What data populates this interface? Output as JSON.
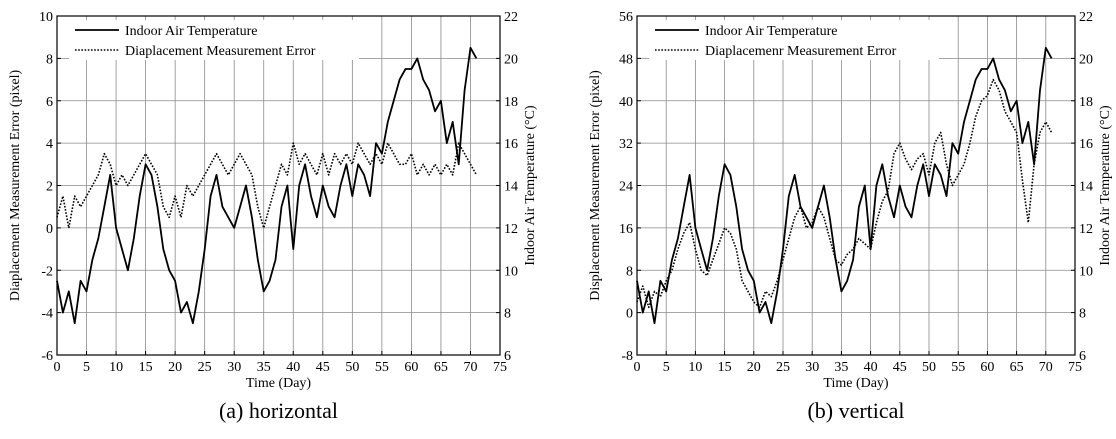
{
  "chart_data": [
    {
      "type": "line",
      "caption": "(a) horizontal",
      "xlabel": "Time (Day)",
      "ylabel": "Diaplacement Measurement Error (pixel)",
      "ylabel2": "Indoor Air Temperature (°C)",
      "xlim": [
        0,
        75
      ],
      "ylim": [
        -6,
        10
      ],
      "y2lim": [
        6,
        22
      ],
      "xticks": [
        0,
        5,
        10,
        15,
        20,
        25,
        30,
        35,
        40,
        45,
        50,
        55,
        60,
        65,
        70,
        75
      ],
      "yticks": [
        -6,
        -4,
        -2,
        0,
        2,
        4,
        6,
        8,
        10
      ],
      "y2ticks": [
        6,
        8,
        10,
        12,
        14,
        16,
        18,
        20,
        22
      ],
      "grid": true,
      "legend": "top-left",
      "series": [
        {
          "name": "Indoor Air Temperature",
          "style": "solid",
          "axis": "right",
          "x": [
            0,
            1,
            2,
            3,
            4,
            5,
            6,
            7,
            8,
            9,
            10,
            11,
            12,
            13,
            14,
            15,
            16,
            17,
            18,
            19,
            20,
            21,
            22,
            23,
            24,
            25,
            26,
            27,
            28,
            29,
            30,
            31,
            32,
            33,
            34,
            35,
            36,
            37,
            38,
            39,
            40,
            41,
            42,
            43,
            44,
            45,
            46,
            47,
            48,
            49,
            50,
            51,
            52,
            53,
            54,
            55,
            56,
            57,
            58,
            59,
            60,
            61,
            62,
            63,
            64,
            65,
            66,
            67,
            68,
            69,
            70,
            71
          ],
          "values": [
            9.5,
            8.0,
            9.0,
            7.5,
            9.5,
            9.0,
            10.5,
            11.5,
            13.0,
            14.5,
            12.0,
            11.0,
            10.0,
            11.5,
            13.5,
            15.0,
            14.5,
            13.0,
            11.0,
            10.0,
            9.5,
            8.0,
            8.5,
            7.5,
            9.0,
            11.0,
            13.5,
            14.5,
            13.0,
            12.5,
            12.0,
            13.0,
            14.0,
            12.5,
            10.5,
            9.0,
            9.5,
            10.5,
            13.0,
            14.0,
            11.0,
            14.0,
            15.0,
            13.5,
            12.5,
            14.0,
            13.0,
            12.5,
            14.0,
            15.0,
            13.5,
            15.0,
            14.5,
            13.5,
            16.0,
            15.5,
            17.0,
            18.0,
            19.0,
            19.5,
            19.5,
            20.0,
            19.0,
            18.5,
            17.5,
            18.0,
            16.0,
            17.0,
            15.0,
            18.5,
            20.5,
            20.0
          ]
        },
        {
          "name": "Diaplacement Measurement Error",
          "style": "dotted",
          "axis": "left",
          "x": [
            0,
            1,
            2,
            3,
            4,
            5,
            6,
            7,
            8,
            9,
            10,
            11,
            12,
            13,
            14,
            15,
            16,
            17,
            18,
            19,
            20,
            21,
            22,
            23,
            24,
            25,
            26,
            27,
            28,
            29,
            30,
            31,
            32,
            33,
            34,
            35,
            36,
            37,
            38,
            39,
            40,
            41,
            42,
            43,
            44,
            45,
            46,
            47,
            48,
            49,
            50,
            51,
            52,
            53,
            54,
            55,
            56,
            57,
            58,
            59,
            60,
            61,
            62,
            63,
            64,
            65,
            66,
            67,
            68,
            69,
            70,
            71
          ],
          "values": [
            0.5,
            1.5,
            0.0,
            1.5,
            1.0,
            1.5,
            2.0,
            2.5,
            3.5,
            3.0,
            2.0,
            2.5,
            2.0,
            2.5,
            3.0,
            3.5,
            3.0,
            2.5,
            1.0,
            0.5,
            1.5,
            0.5,
            2.0,
            1.5,
            2.0,
            2.5,
            3.0,
            3.5,
            3.0,
            2.5,
            3.0,
            3.5,
            3.0,
            2.5,
            1.0,
            0.0,
            1.0,
            2.0,
            3.0,
            2.5,
            4.0,
            3.0,
            3.5,
            3.0,
            2.5,
            3.5,
            2.5,
            3.5,
            3.0,
            3.5,
            3.0,
            4.0,
            3.5,
            3.0,
            3.5,
            3.0,
            4.0,
            3.5,
            3.0,
            3.0,
            3.5,
            2.5,
            3.0,
            2.5,
            3.0,
            2.5,
            3.0,
            2.5,
            4.0,
            3.5,
            3.0,
            2.5
          ]
        }
      ]
    },
    {
      "type": "line",
      "caption": "(b) vertical",
      "xlabel": "Time (Day)",
      "ylabel": "Displacement Measurement Error (pixel)",
      "ylabel2": "Indoor Air Temperature (°C)",
      "xlim": [
        0,
        75
      ],
      "ylim": [
        -8,
        56
      ],
      "y2lim": [
        6,
        22
      ],
      "xticks": [
        0,
        5,
        10,
        15,
        20,
        25,
        30,
        35,
        40,
        45,
        50,
        55,
        60,
        65,
        70,
        75
      ],
      "yticks": [
        -8,
        0,
        8,
        16,
        24,
        32,
        40,
        48,
        56
      ],
      "y2ticks": [
        6,
        8,
        10,
        12,
        14,
        16,
        18,
        20,
        22
      ],
      "grid": true,
      "legend": "top-left",
      "series": [
        {
          "name": "Indoor Air Temperature",
          "style": "solid",
          "axis": "right",
          "x": [
            0,
            1,
            2,
            3,
            4,
            5,
            6,
            7,
            8,
            9,
            10,
            11,
            12,
            13,
            14,
            15,
            16,
            17,
            18,
            19,
            20,
            21,
            22,
            23,
            24,
            25,
            26,
            27,
            28,
            29,
            30,
            31,
            32,
            33,
            34,
            35,
            36,
            37,
            38,
            39,
            40,
            41,
            42,
            43,
            44,
            45,
            46,
            47,
            48,
            49,
            50,
            51,
            52,
            53,
            54,
            55,
            56,
            57,
            58,
            59,
            60,
            61,
            62,
            63,
            64,
            65,
            66,
            67,
            68,
            69,
            70,
            71
          ],
          "values": [
            9.5,
            8.0,
            9.0,
            7.5,
            9.5,
            9.0,
            10.5,
            11.5,
            13.0,
            14.5,
            12.0,
            11.0,
            10.0,
            11.5,
            13.5,
            15.0,
            14.5,
            13.0,
            11.0,
            10.0,
            9.5,
            8.0,
            8.5,
            7.5,
            9.0,
            11.0,
            13.5,
            14.5,
            13.0,
            12.5,
            12.0,
            13.0,
            14.0,
            12.5,
            10.5,
            9.0,
            9.5,
            10.5,
            13.0,
            14.0,
            11.0,
            14.0,
            15.0,
            13.5,
            12.5,
            14.0,
            13.0,
            12.5,
            14.0,
            15.0,
            13.5,
            15.0,
            14.5,
            13.5,
            16.0,
            15.5,
            17.0,
            18.0,
            19.0,
            19.5,
            19.5,
            20.0,
            19.0,
            18.5,
            17.5,
            18.0,
            16.0,
            17.0,
            15.0,
            18.5,
            20.5,
            20.0
          ]
        },
        {
          "name": "Diaplacemenr Measurement Error",
          "style": "dotted",
          "axis": "left",
          "x": [
            0,
            1,
            2,
            3,
            4,
            5,
            6,
            7,
            8,
            9,
            10,
            11,
            12,
            13,
            14,
            15,
            16,
            17,
            18,
            19,
            20,
            21,
            22,
            23,
            24,
            25,
            26,
            27,
            28,
            29,
            30,
            31,
            32,
            33,
            34,
            35,
            36,
            37,
            38,
            39,
            40,
            41,
            42,
            43,
            44,
            45,
            46,
            47,
            48,
            49,
            50,
            51,
            52,
            53,
            54,
            55,
            56,
            57,
            58,
            59,
            60,
            61,
            62,
            63,
            64,
            65,
            66,
            67,
            68,
            69,
            70,
            71
          ],
          "values": [
            2,
            5,
            1,
            4,
            3,
            6,
            8,
            12,
            15,
            17,
            12,
            8,
            7,
            10,
            13,
            16,
            15,
            12,
            6,
            4,
            2,
            1,
            4,
            3,
            6,
            10,
            14,
            18,
            20,
            16,
            17,
            20,
            18,
            14,
            10,
            9,
            11,
            12,
            14,
            13,
            12,
            17,
            21,
            23,
            30,
            32,
            29,
            27,
            29,
            30,
            26,
            32,
            34,
            28,
            24,
            26,
            28,
            32,
            37,
            40,
            41,
            44,
            42,
            38,
            36,
            34,
            25,
            17,
            28,
            34,
            36,
            34
          ]
        }
      ]
    }
  ]
}
